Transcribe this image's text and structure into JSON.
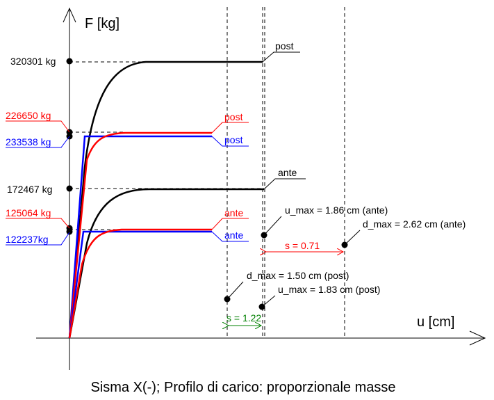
{
  "axes": {
    "y_label": "F [kg]",
    "x_label": "u [cm]"
  },
  "caption": "Sisma X(-); Profilo di carico: proporzionale masse",
  "left_labels": [
    "320301 kg",
    "226650 kg",
    "233538 kg",
    "172467 kg",
    "125064 kg",
    "122237kg"
  ],
  "curve_labels": [
    "post",
    "post",
    "post",
    "ante",
    "ante",
    "ante"
  ],
  "annotations": [
    "u_max = 1.86 cm (ante)",
    "d_max = 2.62 cm (ante)",
    "s = 0.71",
    "d_max = 1.50 cm (post)",
    "u_max = 1.83 cm (post)",
    "s = 1.22"
  ]
}
